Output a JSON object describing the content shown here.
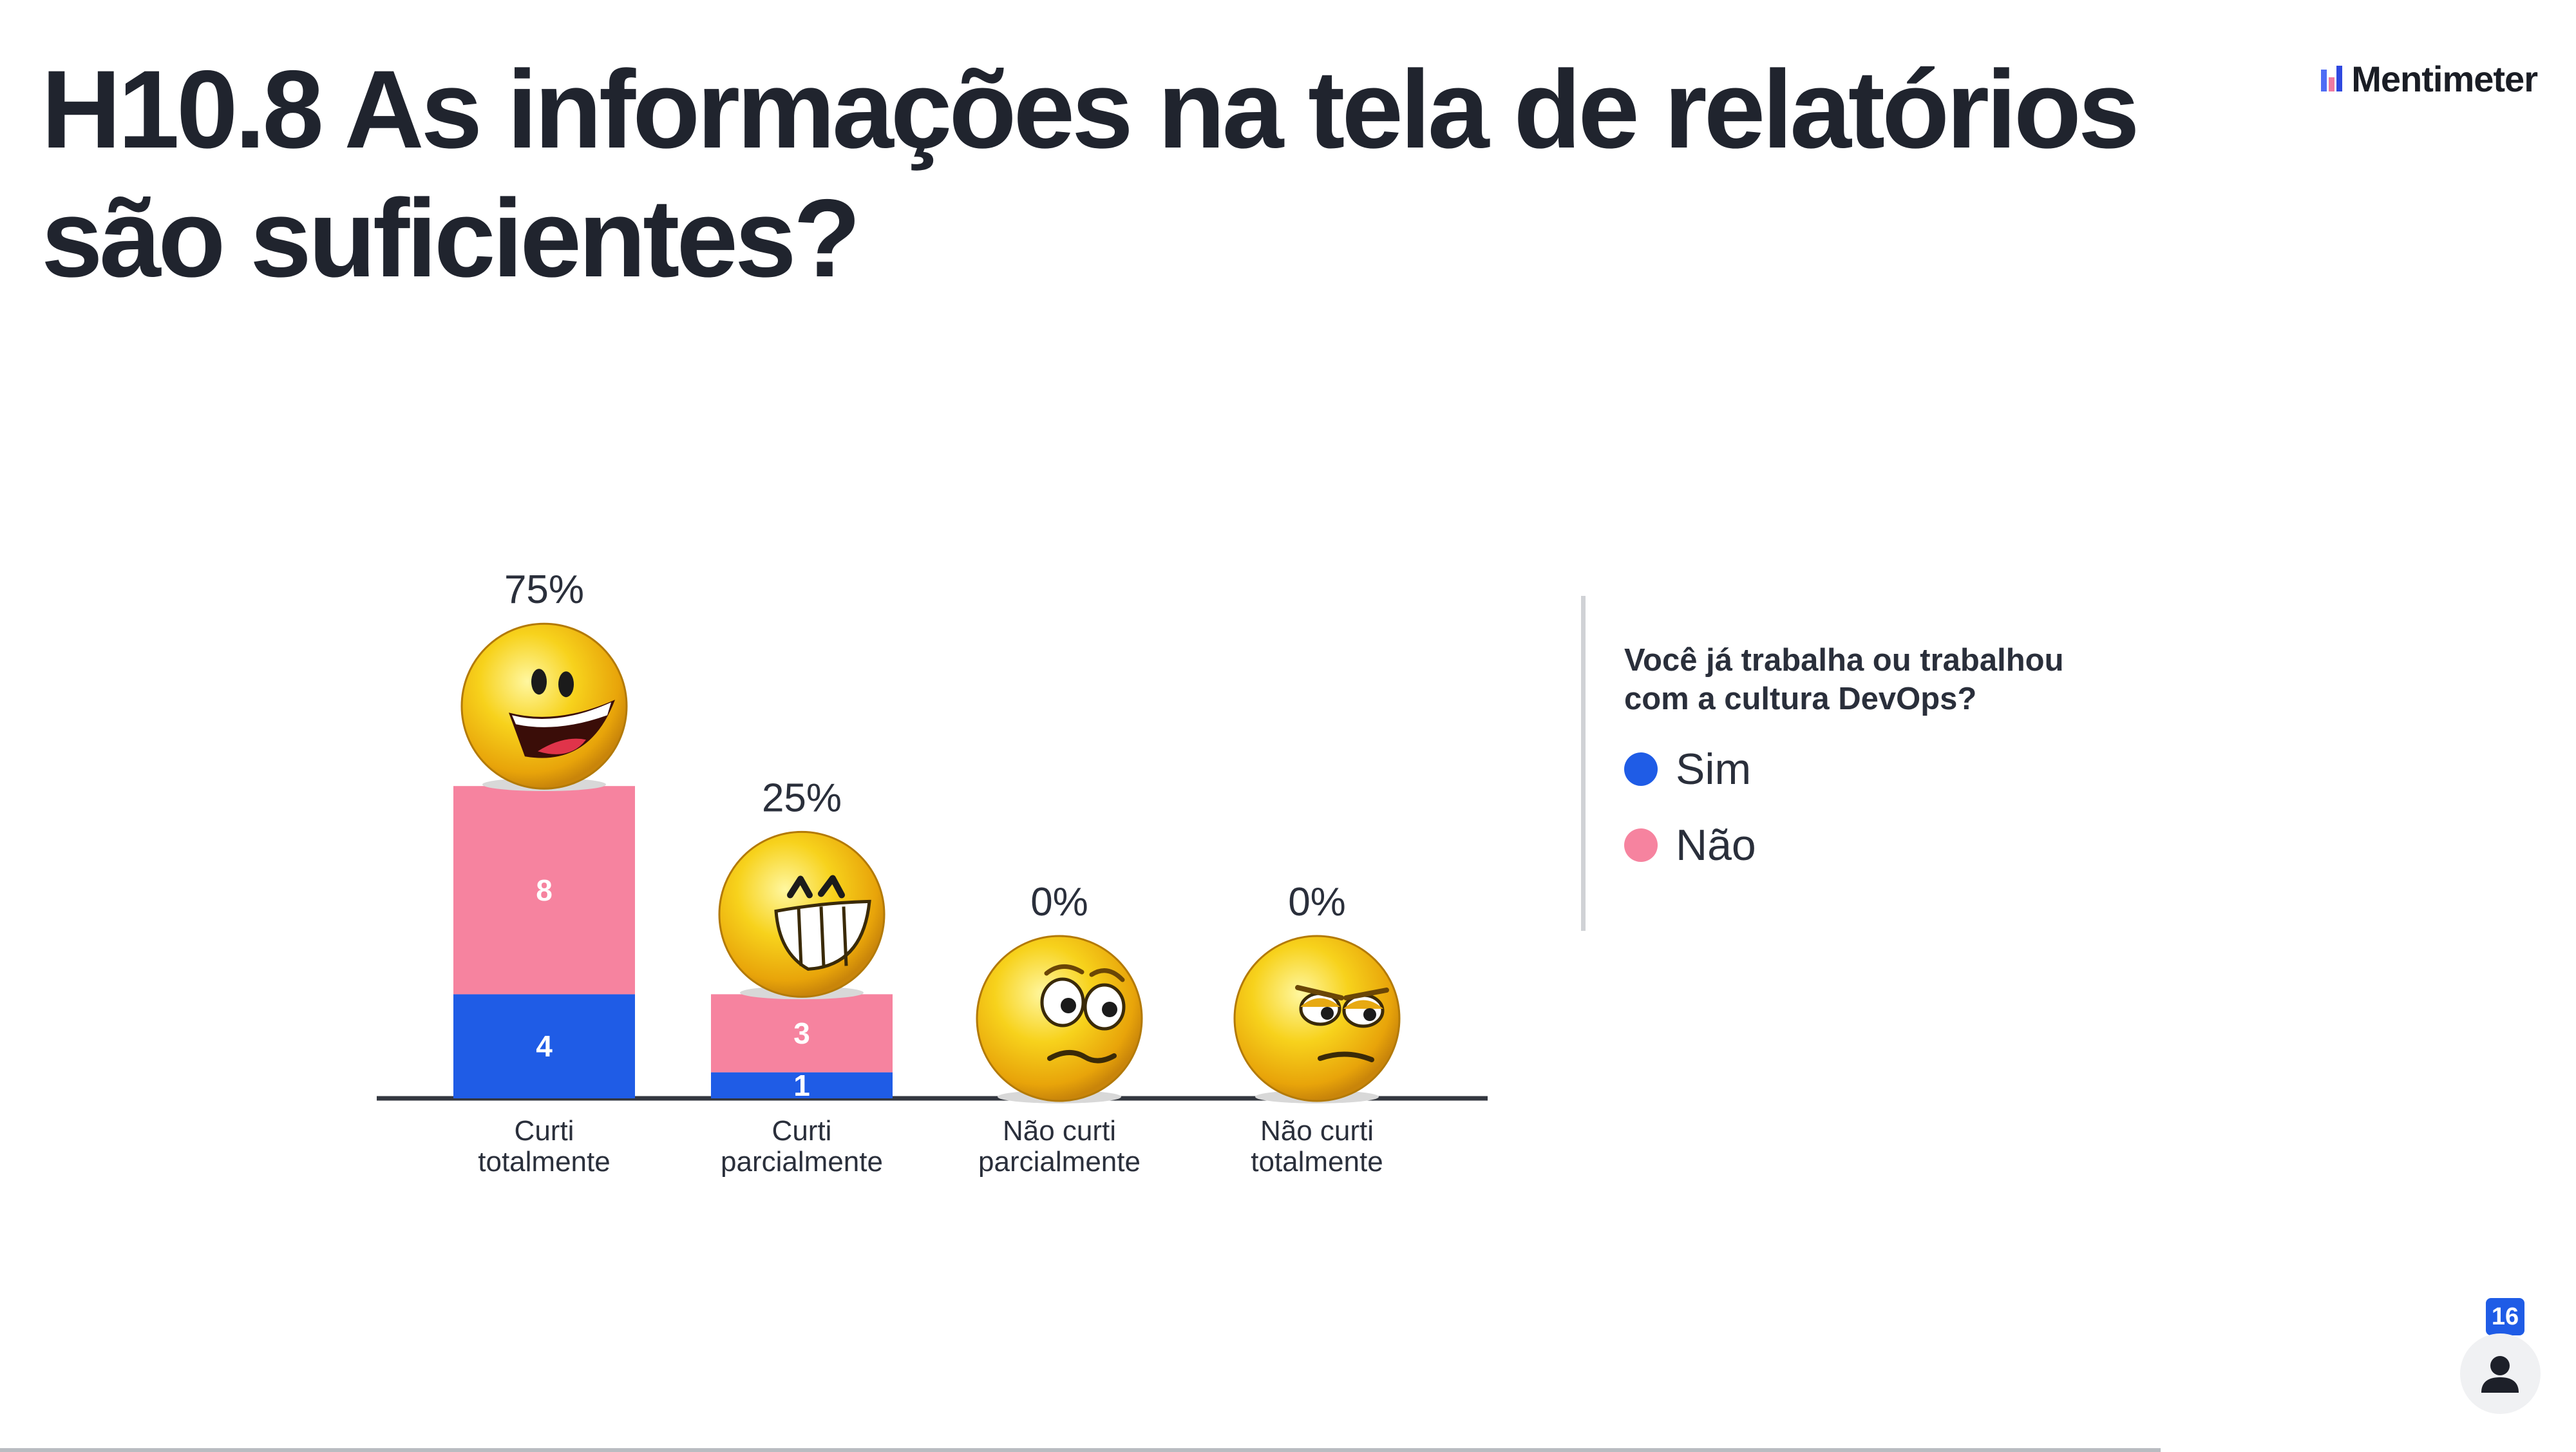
{
  "slide": {
    "title": "H10.8 As informações na tela de relatórios são suficientes?",
    "brand": "Mentimeter"
  },
  "legend": {
    "title": "Você já trabalha ou trabalhou com a cultura DevOps?",
    "items": [
      {
        "label": "Sim",
        "color": "#1f5ce6"
      },
      {
        "label": "Não",
        "color": "#f6839f"
      }
    ]
  },
  "participants": {
    "count": "16"
  },
  "chart_data": {
    "type": "bar",
    "stacked": true,
    "categories": [
      "Curti totalmente",
      "Curti parcialmente",
      "Não curti parcialmente",
      "Não curti totalmente"
    ],
    "category_lines": [
      [
        "Curti",
        "totalmente"
      ],
      [
        "Curti",
        "parcialmente"
      ],
      [
        "Não curti",
        "parcialmente"
      ],
      [
        "Não curti",
        "totalmente"
      ]
    ],
    "series": [
      {
        "name": "Sim",
        "values": [
          4,
          1,
          0,
          0
        ],
        "color": "#1f5ce6"
      },
      {
        "name": "Não",
        "values": [
          8,
          3,
          0,
          0
        ],
        "color": "#f6839f"
      }
    ],
    "percent_labels": [
      "75%",
      "25%",
      "0%",
      "0%"
    ],
    "faces": [
      "laughing",
      "grinning",
      "worried",
      "grumpy"
    ]
  }
}
